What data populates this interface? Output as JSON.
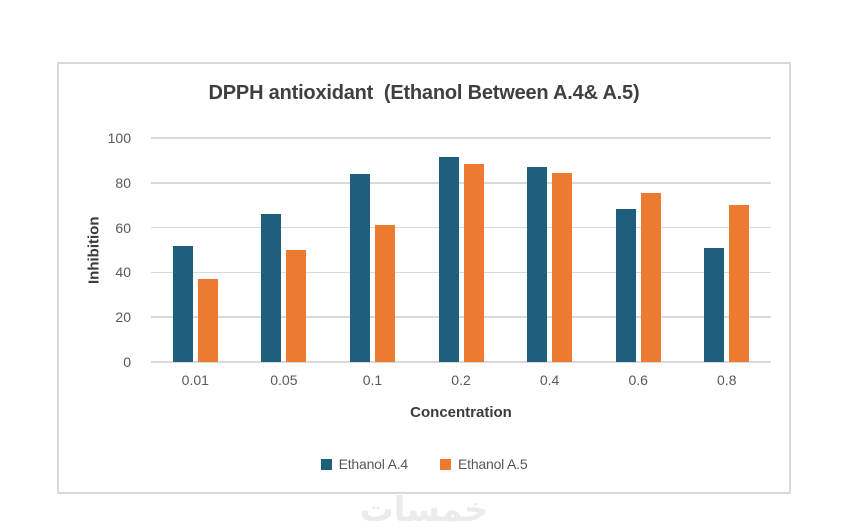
{
  "watermark": {
    "text": "خمسات"
  },
  "chart_data": {
    "type": "bar",
    "title": "DPPH antioxidant  (Ethanol Between A.4& A.5)",
    "xlabel": "Concentration",
    "ylabel": "Inhibition",
    "categories": [
      "0.01",
      "0.05",
      "0.1",
      "0.2",
      "0.4",
      "0.6",
      "0.8"
    ],
    "series": [
      {
        "name": "Ethanol A.4",
        "color": "#1F5F7E",
        "values": [
          52,
          66,
          84,
          91.5,
          87,
          68.5,
          51
        ]
      },
      {
        "name": "Ethanol A.5",
        "color": "#EC7B31",
        "values": [
          37,
          50,
          61,
          88.5,
          84.5,
          75.5,
          70
        ]
      }
    ],
    "ylim": [
      0,
      100
    ],
    "yticks": [
      0,
      20,
      40,
      60,
      80,
      100
    ],
    "grid": true,
    "legend_position": "bottom",
    "colors": {
      "gridline": "#D9D9D9",
      "tick_label": "#595959",
      "title": "#3F3F3F",
      "axis_title": "#3B3B3B",
      "card_border": "#D9D9D9",
      "watermark": "#EBEBEB"
    }
  }
}
